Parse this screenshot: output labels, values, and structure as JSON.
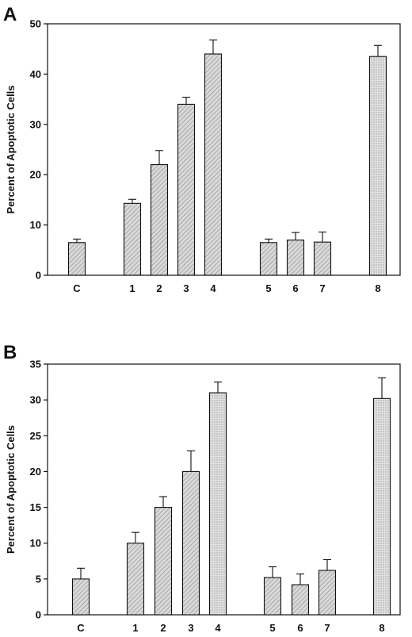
{
  "colors": {
    "bar_fill": "#d9d9d9",
    "stroke": "#111111",
    "background": "#ffffff"
  },
  "chart_data": [
    {
      "panel": "A",
      "type": "bar",
      "ylabel": "Percent of Apoptotic Cells",
      "xlabel": "",
      "ylim": [
        0,
        50
      ],
      "yticks": [
        0,
        10,
        20,
        30,
        40,
        50
      ],
      "categories": [
        "C",
        "1",
        "2",
        "3",
        "4",
        "5",
        "6",
        "7",
        "8"
      ],
      "values": [
        6.5,
        14.3,
        22.0,
        34.0,
        44.0,
        6.5,
        7.0,
        6.6,
        43.5
      ],
      "errors": [
        0.7,
        0.8,
        2.8,
        1.4,
        2.8,
        0.7,
        1.5,
        2.0,
        2.2
      ],
      "grid": false,
      "legend": "none"
    },
    {
      "panel": "B",
      "type": "bar",
      "ylabel": "Percent of Apoptotic Cells",
      "xlabel": "",
      "ylim": [
        0,
        35
      ],
      "yticks": [
        0,
        5,
        10,
        15,
        20,
        25,
        30,
        35
      ],
      "categories": [
        "C",
        "1",
        "2",
        "3",
        "4",
        "5",
        "6",
        "7",
        "8"
      ],
      "values": [
        5.0,
        10.0,
        15.0,
        20.0,
        31.0,
        5.2,
        4.2,
        6.2,
        30.2
      ],
      "errors": [
        1.5,
        1.5,
        1.5,
        2.9,
        1.5,
        1.5,
        1.5,
        1.5,
        2.9
      ],
      "grid": false,
      "legend": "none"
    }
  ]
}
